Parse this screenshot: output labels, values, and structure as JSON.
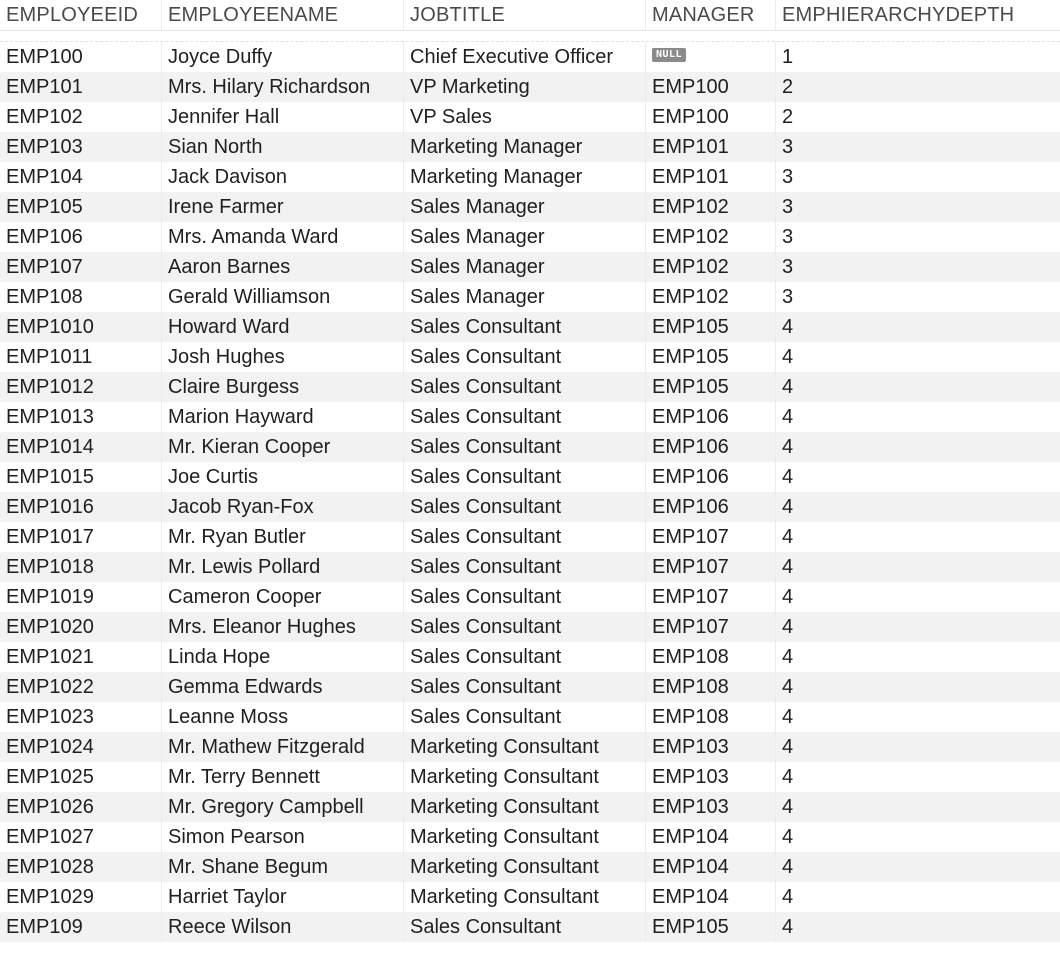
{
  "columns": [
    "EMPLOYEEID",
    "EMPLOYEENAME",
    "JOBTITLE",
    "MANAGER",
    "EMPHIERARCHYDEPTH"
  ],
  "null_label": "NULL",
  "rows": [
    [
      "EMP100",
      "Joyce Duffy",
      "Chief Executive Officer",
      null,
      "1"
    ],
    [
      "EMP101",
      "Mrs. Hilary Richardson",
      "VP Marketing",
      "EMP100",
      "2"
    ],
    [
      "EMP102",
      "Jennifer Hall",
      "VP Sales",
      "EMP100",
      "2"
    ],
    [
      "EMP103",
      "Sian North",
      "Marketing Manager",
      "EMP101",
      "3"
    ],
    [
      "EMP104",
      "Jack Davison",
      "Marketing Manager",
      "EMP101",
      "3"
    ],
    [
      "EMP105",
      "Irene Farmer",
      "Sales Manager",
      "EMP102",
      "3"
    ],
    [
      "EMP106",
      "Mrs. Amanda Ward",
      "Sales Manager",
      "EMP102",
      "3"
    ],
    [
      "EMP107",
      "Aaron Barnes",
      "Sales Manager",
      "EMP102",
      "3"
    ],
    [
      "EMP108",
      "Gerald Williamson",
      "Sales Manager",
      "EMP102",
      "3"
    ],
    [
      "EMP1010",
      "Howard Ward",
      "Sales Consultant",
      "EMP105",
      "4"
    ],
    [
      "EMP1011",
      "Josh Hughes",
      "Sales Consultant",
      "EMP105",
      "4"
    ],
    [
      "EMP1012",
      "Claire Burgess",
      "Sales Consultant",
      "EMP105",
      "4"
    ],
    [
      "EMP1013",
      "Marion Hayward",
      "Sales Consultant",
      "EMP106",
      "4"
    ],
    [
      "EMP1014",
      "Mr. Kieran Cooper",
      "Sales Consultant",
      "EMP106",
      "4"
    ],
    [
      "EMP1015",
      "Joe Curtis",
      "Sales Consultant",
      "EMP106",
      "4"
    ],
    [
      "EMP1016",
      "Jacob Ryan-Fox",
      "Sales Consultant",
      "EMP106",
      "4"
    ],
    [
      "EMP1017",
      "Mr. Ryan Butler",
      "Sales Consultant",
      "EMP107",
      "4"
    ],
    [
      "EMP1018",
      "Mr. Lewis Pollard",
      "Sales Consultant",
      "EMP107",
      "4"
    ],
    [
      "EMP1019",
      "Cameron Cooper",
      "Sales Consultant",
      "EMP107",
      "4"
    ],
    [
      "EMP1020",
      "Mrs. Eleanor Hughes",
      "Sales Consultant",
      "EMP107",
      "4"
    ],
    [
      "EMP1021",
      "Linda Hope",
      "Sales Consultant",
      "EMP108",
      "4"
    ],
    [
      "EMP1022",
      "Gemma Edwards",
      "Sales Consultant",
      "EMP108",
      "4"
    ],
    [
      "EMP1023",
      "Leanne Moss",
      "Sales Consultant",
      "EMP108",
      "4"
    ],
    [
      "EMP1024",
      "Mr. Mathew Fitzgerald",
      "Marketing Consultant",
      "EMP103",
      "4"
    ],
    [
      "EMP1025",
      "Mr. Terry Bennett",
      "Marketing Consultant",
      "EMP103",
      "4"
    ],
    [
      "EMP1026",
      "Mr. Gregory Campbell",
      "Marketing Consultant",
      "EMP103",
      "4"
    ],
    [
      "EMP1027",
      "Simon Pearson",
      "Marketing Consultant",
      "EMP104",
      "4"
    ],
    [
      "EMP1028",
      "Mr. Shane Begum",
      "Marketing Consultant",
      "EMP104",
      "4"
    ],
    [
      "EMP1029",
      "Harriet Taylor",
      "Marketing Consultant",
      "EMP104",
      "4"
    ],
    [
      "EMP109",
      "Reece Wilson",
      "Sales Consultant",
      "EMP105",
      "4"
    ]
  ]
}
